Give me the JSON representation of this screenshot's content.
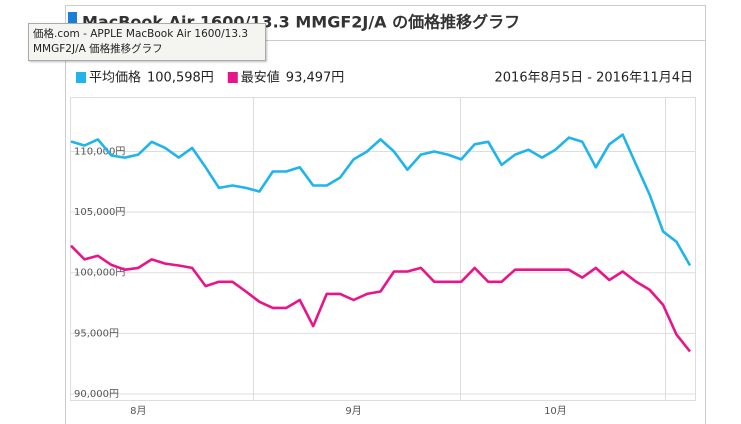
{
  "title": "MacBook Air 1600/13.3 MMGF2J/A の価格推移グラフ",
  "tooltip": {
    "lines": [
      "価格.com - APPLE MacBook Air 1600/13.3",
      "MMGF2J/A 価格推移グラフ"
    ]
  },
  "chart_data": {
    "type": "line",
    "date_range": "2016年8月5日 - 2016年11月4日",
    "categories": [
      null,
      null,
      null,
      null,
      null,
      "8月",
      null,
      null,
      null,
      null,
      null,
      null,
      null,
      null,
      null,
      null,
      null,
      null,
      null,
      null,
      null,
      "9月",
      null,
      null,
      null,
      null,
      null,
      null,
      null,
      null,
      null,
      null,
      null,
      null,
      null,
      null,
      "10月",
      null,
      null,
      null,
      null,
      null,
      null,
      null,
      null,
      null,
      null
    ],
    "series": [
      {
        "name": "平均価格",
        "summary": "100,598円",
        "color": "#1fb4ec",
        "values": [
          110826,
          110500,
          111000,
          109670,
          109500,
          109750,
          110800,
          110300,
          109500,
          110300,
          108700,
          107000,
          107200,
          107000,
          106700,
          108350,
          108350,
          108700,
          107200,
          107200,
          107850,
          109350,
          110000,
          111000,
          110000,
          108500,
          109750,
          110000,
          109750,
          109350,
          110600,
          110800,
          108900,
          109750,
          110150,
          109500,
          110150,
          111150,
          110800,
          108700,
          110600,
          111400,
          108900,
          106450,
          103400,
          102550,
          100600
        ]
      },
      {
        "name": "最安値",
        "summary": "93,497円",
        "color": "#e8158a",
        "values": [
          102230,
          101100,
          101400,
          100650,
          100250,
          100400,
          101100,
          100750,
          100600,
          100400,
          98900,
          99250,
          99250,
          98450,
          97600,
          97100,
          97100,
          97750,
          95600,
          98250,
          98250,
          97750,
          98250,
          98450,
          100100,
          100100,
          100400,
          99250,
          99250,
          99250,
          100400,
          99250,
          99250,
          100250,
          100250,
          100250,
          100250,
          100250,
          99600,
          100400,
          99400,
          100100,
          99250,
          98600,
          97350,
          94900,
          93500
        ]
      }
    ],
    "ylim": [
      89500,
      114500
    ],
    "yticks": [
      {
        "value": 90000,
        "label": "90,000円"
      },
      {
        "value": 95000,
        "label": "95,000円"
      },
      {
        "value": 100000,
        "label": "100,000円"
      },
      {
        "value": 105000,
        "label": "105,000円"
      },
      {
        "value": 110000,
        "label": "110,000円"
      }
    ],
    "grid": true
  }
}
